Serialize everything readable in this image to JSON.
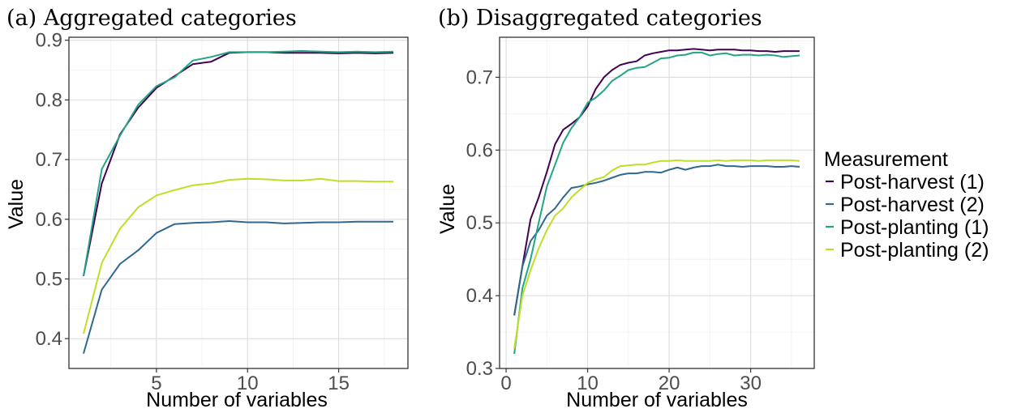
{
  "chart_data": [
    {
      "type": "line",
      "title": "(a) Aggregated categories",
      "xlabel": "Number of variables",
      "ylabel": "Value",
      "xlim": [
        0.2,
        18.8
      ],
      "ylim": [
        0.35,
        0.905
      ],
      "xticks": [
        5,
        10,
        15
      ],
      "yticks": [
        0.4,
        0.5,
        0.6,
        0.7,
        0.8,
        0.9
      ],
      "xminor": [
        2.5,
        7.5,
        12.5,
        17.5
      ],
      "yminor": [
        0.45,
        0.55,
        0.65,
        0.75,
        0.85
      ],
      "x": [
        1,
        2,
        3,
        4,
        5,
        6,
        7,
        8,
        9,
        10,
        11,
        12,
        13,
        14,
        15,
        16,
        17,
        18
      ],
      "series": [
        {
          "name": "Post-harvest (1)",
          "color": "#440154",
          "values": [
            0.505,
            0.66,
            0.742,
            0.787,
            0.82,
            0.84,
            0.86,
            0.864,
            0.879,
            0.88,
            0.88,
            0.879,
            0.879,
            0.879,
            0.878,
            0.879,
            0.878,
            0.879
          ]
        },
        {
          "name": "Post-harvest (2)",
          "color": "#31688e",
          "values": [
            0.375,
            0.482,
            0.525,
            0.548,
            0.577,
            0.592,
            0.594,
            0.595,
            0.597,
            0.595,
            0.595,
            0.593,
            0.594,
            0.595,
            0.595,
            0.596,
            0.596,
            0.596
          ]
        },
        {
          "name": "Post-planting (1)",
          "color": "#21a585",
          "values": [
            0.505,
            0.684,
            0.74,
            0.792,
            0.823,
            0.838,
            0.866,
            0.872,
            0.88,
            0.88,
            0.88,
            0.881,
            0.882,
            0.881,
            0.88,
            0.881,
            0.88,
            0.881
          ]
        },
        {
          "name": "Post-planting (2)",
          "color": "#bddf26",
          "values": [
            0.408,
            0.527,
            0.584,
            0.62,
            0.64,
            0.649,
            0.657,
            0.66,
            0.666,
            0.668,
            0.667,
            0.665,
            0.665,
            0.668,
            0.664,
            0.664,
            0.663,
            0.663
          ]
        }
      ]
    },
    {
      "type": "line",
      "title": "(b) Disaggregated categories",
      "xlabel": "Number of variables",
      "ylabel": "Value",
      "xlim": [
        -0.8,
        37.8
      ],
      "ylim": [
        0.3,
        0.755
      ],
      "xticks": [
        0,
        10,
        20,
        30
      ],
      "yticks": [
        0.3,
        0.4,
        0.5,
        0.6,
        0.7
      ],
      "xminor": [
        5,
        15,
        25,
        35
      ],
      "yminor": [
        0.35,
        0.45,
        0.55,
        0.65,
        0.75
      ],
      "x": [
        1,
        2,
        3,
        4,
        5,
        6,
        7,
        8,
        9,
        10,
        11,
        12,
        13,
        14,
        15,
        16,
        17,
        18,
        19,
        20,
        21,
        22,
        23,
        24,
        25,
        26,
        27,
        28,
        29,
        30,
        31,
        32,
        33,
        34,
        35,
        36
      ],
      "series": [
        {
          "name": "Post-harvest (1)",
          "color": "#440154",
          "values": [
            0.373,
            0.44,
            0.505,
            0.535,
            0.57,
            0.608,
            0.628,
            0.636,
            0.645,
            0.66,
            0.684,
            0.7,
            0.71,
            0.717,
            0.72,
            0.722,
            0.73,
            0.733,
            0.735,
            0.737,
            0.737,
            0.738,
            0.739,
            0.738,
            0.737,
            0.738,
            0.738,
            0.738,
            0.737,
            0.737,
            0.736,
            0.736,
            0.735,
            0.736,
            0.736,
            0.736
          ]
        },
        {
          "name": "Post-harvest (2)",
          "color": "#31688e",
          "values": [
            0.373,
            0.44,
            0.475,
            0.49,
            0.51,
            0.52,
            0.535,
            0.548,
            0.55,
            0.553,
            0.555,
            0.558,
            0.562,
            0.566,
            0.568,
            0.568,
            0.57,
            0.57,
            0.569,
            0.573,
            0.576,
            0.573,
            0.576,
            0.578,
            0.578,
            0.58,
            0.578,
            0.578,
            0.577,
            0.578,
            0.578,
            0.578,
            0.577,
            0.577,
            0.578,
            0.577
          ]
        },
        {
          "name": "Post-planting (1)",
          "color": "#21a585",
          "values": [
            0.32,
            0.41,
            0.45,
            0.5,
            0.55,
            0.58,
            0.61,
            0.63,
            0.645,
            0.665,
            0.672,
            0.682,
            0.695,
            0.702,
            0.71,
            0.713,
            0.714,
            0.72,
            0.726,
            0.727,
            0.73,
            0.731,
            0.734,
            0.734,
            0.73,
            0.732,
            0.733,
            0.73,
            0.731,
            0.731,
            0.73,
            0.731,
            0.73,
            0.728,
            0.729,
            0.73
          ]
        },
        {
          "name": "Post-planting (2)",
          "color": "#bddf26",
          "values": [
            0.327,
            0.4,
            0.435,
            0.465,
            0.49,
            0.51,
            0.52,
            0.535,
            0.545,
            0.555,
            0.56,
            0.563,
            0.572,
            0.578,
            0.579,
            0.58,
            0.58,
            0.583,
            0.585,
            0.585,
            0.586,
            0.585,
            0.585,
            0.585,
            0.585,
            0.586,
            0.585,
            0.586,
            0.586,
            0.586,
            0.585,
            0.586,
            0.586,
            0.586,
            0.586,
            0.585
          ]
        }
      ]
    }
  ],
  "legend": {
    "title": "Measurement",
    "items": [
      {
        "label": "Post-harvest (1)",
        "color": "#440154"
      },
      {
        "label": "Post-harvest (2)",
        "color": "#31688e"
      },
      {
        "label": "Post-planting (1)",
        "color": "#21a585"
      },
      {
        "label": "Post-planting (2)",
        "color": "#bddf26"
      }
    ]
  }
}
